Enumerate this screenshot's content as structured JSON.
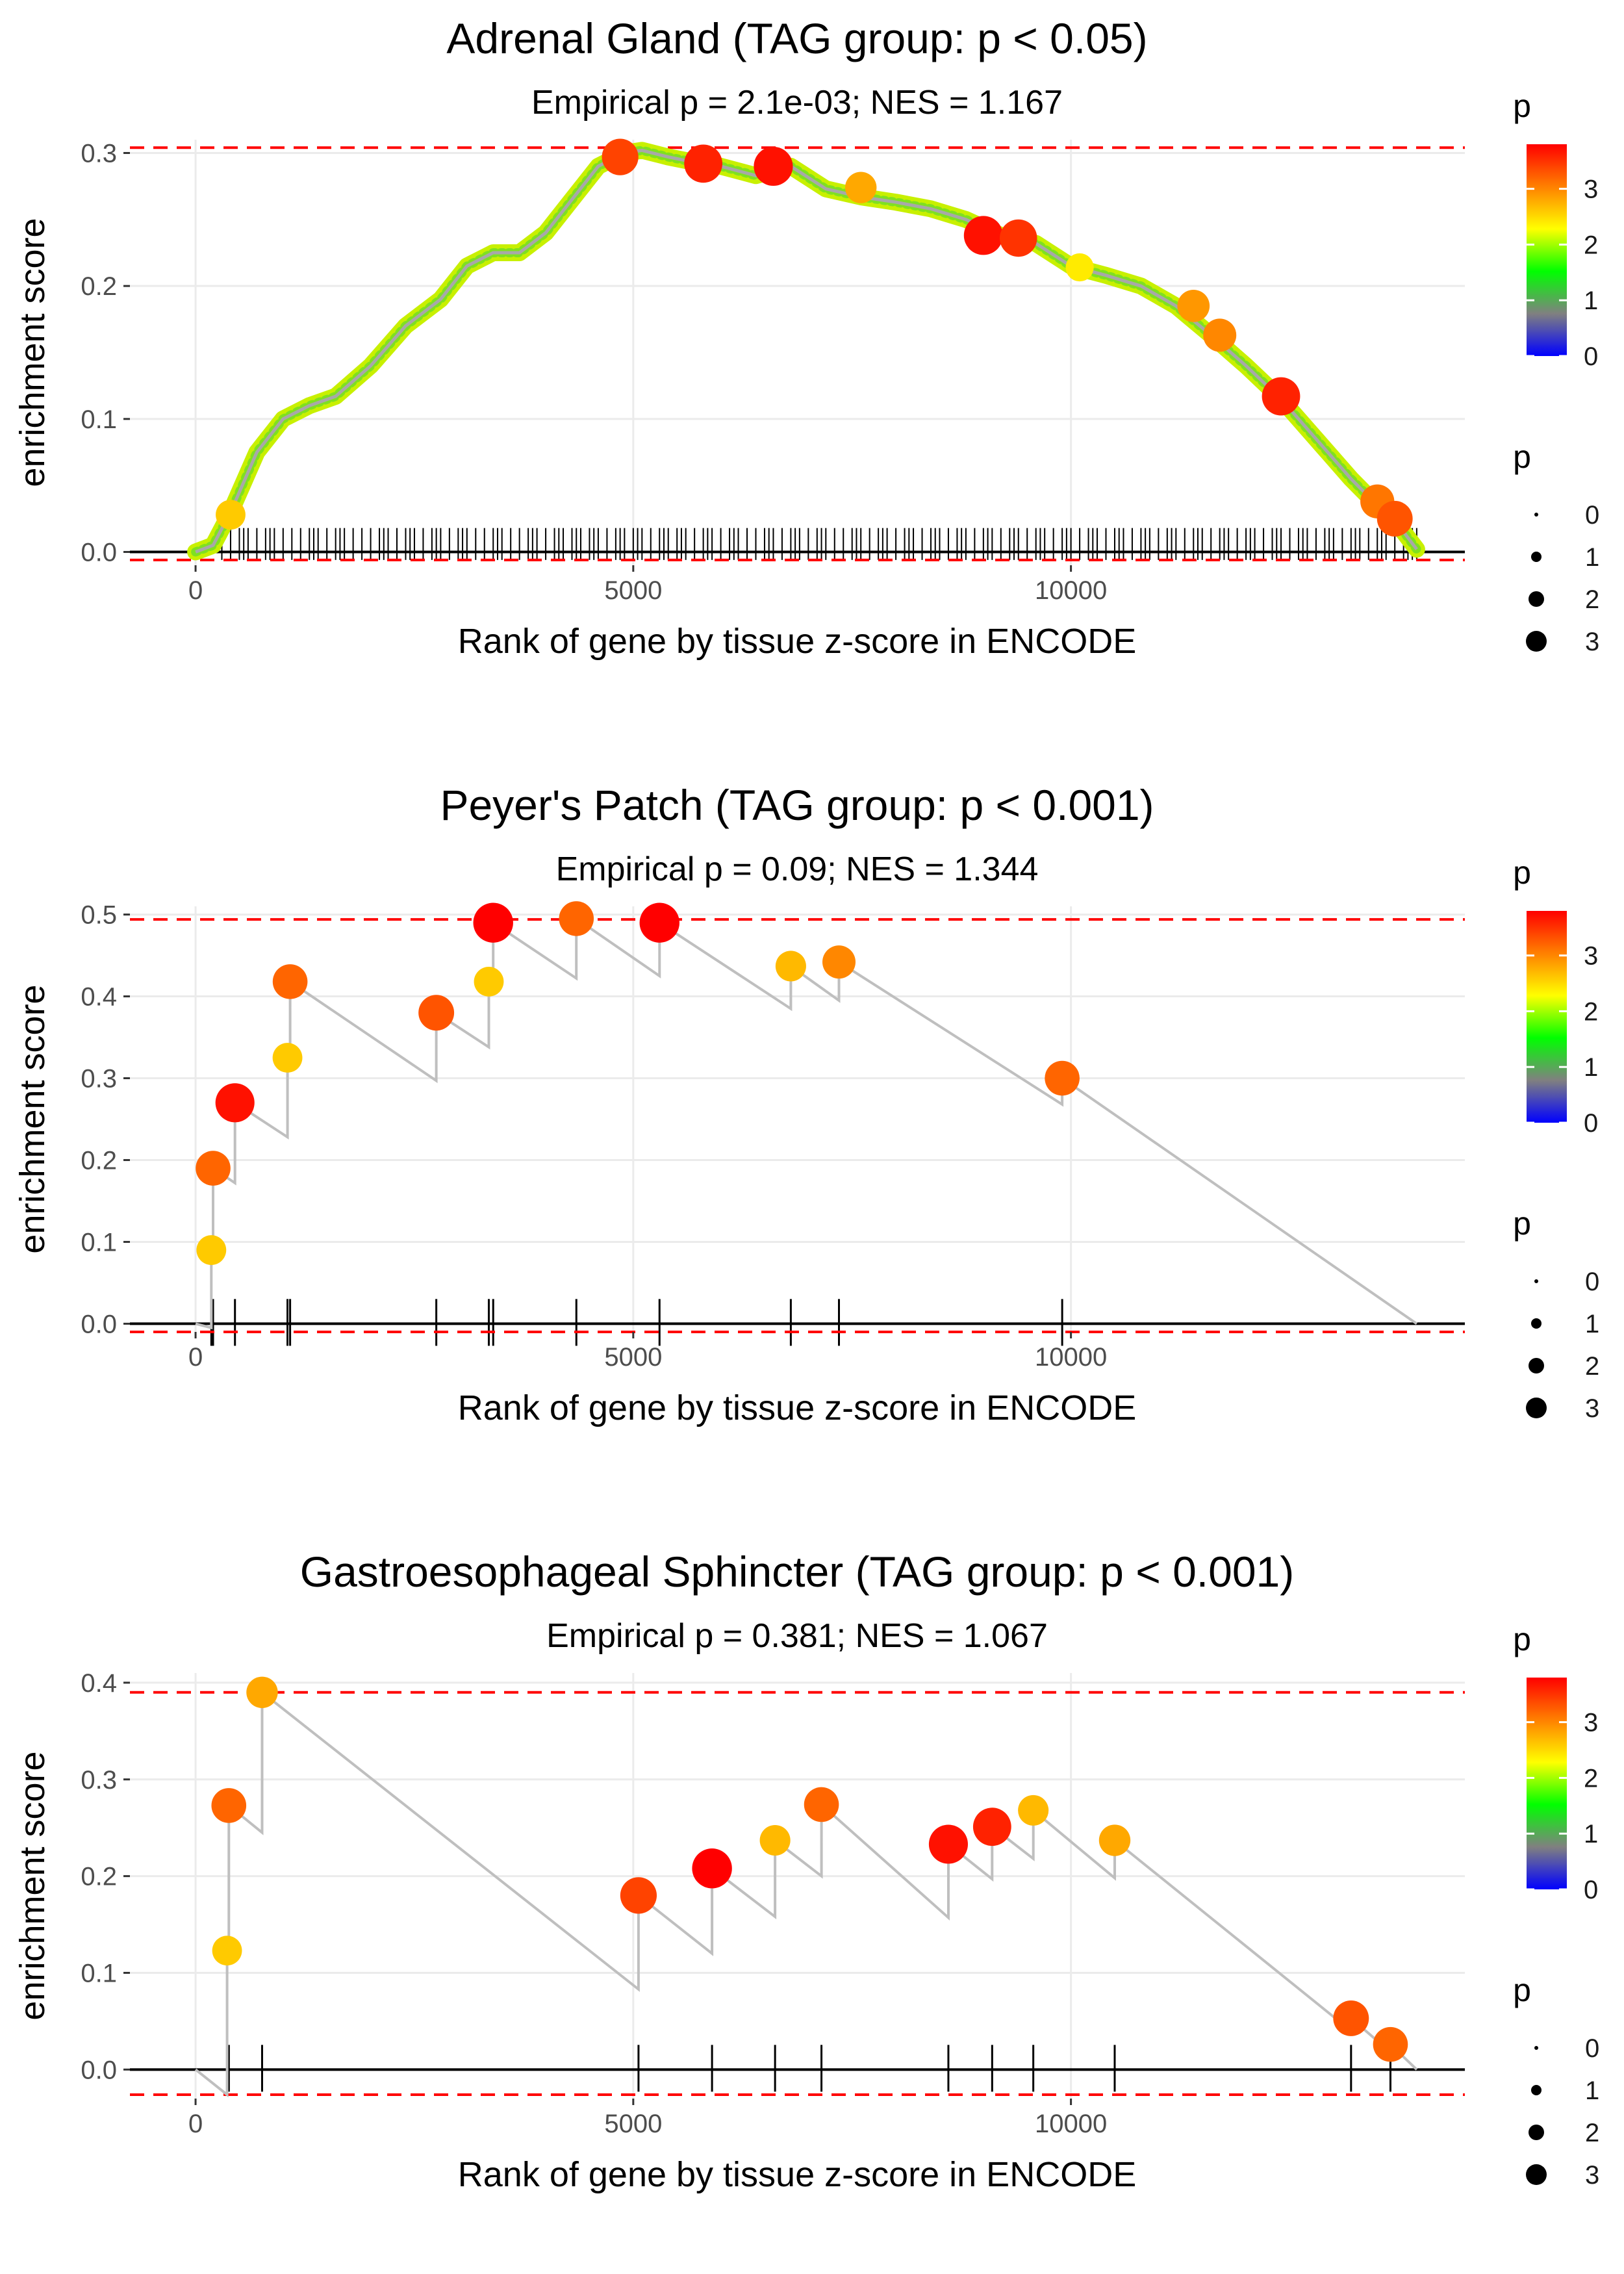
{
  "chart_data": [
    {
      "type": "line",
      "title": "Adrenal Gland (TAG group: p < 0.05)",
      "subtitle": "Empirical p = 2.1e-03; NES = 1.167",
      "xlabel": "Rank of gene by tissue z-score in ENCODE",
      "ylabel": "enrichment score",
      "xlim": [
        -750,
        14500
      ],
      "ylim": [
        -0.01,
        0.31
      ],
      "x_ticks": [
        0,
        5000,
        10000
      ],
      "x_tick_labels": [
        "0",
        "5000",
        "10000"
      ],
      "y_ticks": [
        0.0,
        0.1,
        0.2,
        0.3
      ],
      "y_tick_labels": [
        "0.0",
        "0.1",
        "0.2",
        "0.3"
      ],
      "ref_lines": [
        0.304,
        -0.006
      ],
      "curve": {
        "x": [
          0,
          200,
          400,
          700,
          1000,
          1300,
          1600,
          2000,
          2400,
          2800,
          3100,
          3400,
          3700,
          4000,
          4300,
          4600,
          4900,
          5100,
          5400,
          5700,
          6000,
          6400,
          6800,
          7200,
          7600,
          8000,
          8400,
          8800,
          9200,
          9600,
          10000,
          10400,
          10800,
          11200,
          11600,
          12000,
          12400,
          12800,
          13200,
          13500,
          13800,
          13950
        ],
        "y": [
          0.0,
          0.005,
          0.03,
          0.075,
          0.1,
          0.11,
          0.117,
          0.14,
          0.17,
          0.19,
          0.215,
          0.225,
          0.225,
          0.24,
          0.265,
          0.29,
          0.3,
          0.302,
          0.297,
          0.293,
          0.29,
          0.283,
          0.29,
          0.273,
          0.267,
          0.263,
          0.258,
          0.25,
          0.238,
          0.232,
          0.215,
          0.208,
          0.2,
          0.185,
          0.163,
          0.14,
          0.115,
          0.085,
          0.055,
          0.035,
          0.015,
          0.002
        ]
      },
      "hits": [
        300,
        400,
        500,
        550,
        600,
        700,
        800,
        850,
        900,
        1000,
        1100,
        1200,
        1300,
        1350,
        1400,
        1500,
        1600,
        1650,
        1700,
        1800,
        1900,
        2000,
        2100,
        2150,
        2200,
        2300,
        2400,
        2450,
        2500,
        2600,
        2700,
        2750,
        2800,
        2900,
        3000,
        3050,
        3100,
        3200,
        3300,
        3400,
        3450,
        3500,
        3600,
        3700,
        3800,
        3850,
        3900,
        4000,
        4100,
        4150,
        4200,
        4300,
        4350,
        4400,
        4500,
        4550,
        4600,
        4700,
        4800,
        4850,
        4900,
        5000,
        5050,
        5100,
        5200,
        5300,
        5350,
        5400,
        5500,
        5550,
        5600,
        5700,
        5800,
        5850,
        5900,
        6000,
        6100,
        6150,
        6200,
        6300,
        6400,
        6500,
        6550,
        6600,
        6700,
        6800,
        6850,
        6900,
        7000,
        7100,
        7150,
        7200,
        7300,
        7400,
        7500,
        7550,
        7600,
        7700,
        7800,
        7850,
        7900,
        8000,
        8100,
        8150,
        8200,
        8300,
        8400,
        8450,
        8500,
        8600,
        8700,
        8750,
        8800,
        8900,
        9000,
        9050,
        9100,
        9200,
        9300,
        9350,
        9400,
        9500,
        9600,
        9650,
        9700,
        9800,
        9900,
        9950,
        10000,
        10100,
        10200,
        10250,
        10300,
        10400,
        10500,
        10550,
        10600,
        10700,
        10800,
        10850,
        10900,
        11000,
        11100,
        11150,
        11200,
        11300,
        11400,
        11450,
        11500,
        11600,
        11700,
        11750,
        11800,
        11900,
        12000,
        12050,
        12100,
        12200,
        12300,
        12350,
        12400,
        12500,
        12600,
        12650,
        12700,
        12800,
        12900,
        12950,
        13000,
        13100,
        13200,
        13250,
        13300,
        13400,
        13500,
        13550,
        13600,
        13700,
        13800,
        13850,
        13900,
        13950
      ],
      "points": [
        {
          "x": 400,
          "y": 0.028,
          "p": 2.6
        },
        {
          "x": 4850,
          "y": 0.297,
          "p": 3.4
        },
        {
          "x": 5800,
          "y": 0.292,
          "p": 3.6
        },
        {
          "x": 6600,
          "y": 0.29,
          "p": 3.7
        },
        {
          "x": 7600,
          "y": 0.274,
          "p": 2.8
        },
        {
          "x": 9000,
          "y": 0.238,
          "p": 3.7
        },
        {
          "x": 9400,
          "y": 0.236,
          "p": 3.5
        },
        {
          "x": 10100,
          "y": 0.214,
          "p": 2.4
        },
        {
          "x": 11400,
          "y": 0.185,
          "p": 2.9
        },
        {
          "x": 11700,
          "y": 0.163,
          "p": 3.0
        },
        {
          "x": 12400,
          "y": 0.117,
          "p": 3.6
        },
        {
          "x": 13500,
          "y": 0.038,
          "p": 3.1
        },
        {
          "x": 13700,
          "y": 0.025,
          "p": 3.3
        }
      ]
    },
    {
      "type": "line",
      "title": "Peyer's Patch (TAG group: p < 0.001)",
      "subtitle": "Empirical p = 0.09; NES = 1.344",
      "xlabel": "Rank of gene by tissue z-score in ENCODE",
      "ylabel": "enrichment score",
      "xlim": [
        -750,
        14500
      ],
      "ylim": [
        -0.01,
        0.51
      ],
      "x_ticks": [
        0,
        5000,
        10000
      ],
      "x_tick_labels": [
        "0",
        "5000",
        "10000"
      ],
      "y_ticks": [
        0.0,
        0.1,
        0.2,
        0.3,
        0.4,
        0.5
      ],
      "y_tick_labels": [
        "0.0",
        "0.1",
        "0.2",
        "0.3",
        "0.4",
        "0.5"
      ],
      "ref_lines": [
        0.494,
        -0.01
      ],
      "curve": {
        "x": [
          0,
          180,
          180,
          200,
          200,
          450,
          450,
          1050,
          1050,
          1080,
          1080,
          2750,
          2750,
          3350,
          3350,
          3400,
          3400,
          4350,
          4350,
          5300,
          5300,
          6800,
          6800,
          7350,
          7350,
          9900,
          9900,
          13950
        ],
        "y": [
          0.0,
          -0.005,
          0.09,
          0.087,
          0.19,
          0.172,
          0.27,
          0.228,
          0.325,
          0.322,
          0.418,
          0.297,
          0.38,
          0.338,
          0.418,
          0.415,
          0.49,
          0.422,
          0.495,
          0.425,
          0.49,
          0.385,
          0.437,
          0.395,
          0.442,
          0.268,
          0.3,
          0.0
        ]
      },
      "hits": [
        180,
        200,
        450,
        1050,
        1080,
        2750,
        3350,
        3400,
        4350,
        5300,
        6800,
        7350,
        9900
      ],
      "points": [
        {
          "x": 180,
          "y": 0.09,
          "p": 2.6
        },
        {
          "x": 200,
          "y": 0.19,
          "p": 3.2
        },
        {
          "x": 450,
          "y": 0.27,
          "p": 3.7
        },
        {
          "x": 1050,
          "y": 0.325,
          "p": 2.6
        },
        {
          "x": 1080,
          "y": 0.418,
          "p": 3.2
        },
        {
          "x": 2750,
          "y": 0.38,
          "p": 3.3
        },
        {
          "x": 3350,
          "y": 0.418,
          "p": 2.6
        },
        {
          "x": 3400,
          "y": 0.49,
          "p": 3.8
        },
        {
          "x": 4350,
          "y": 0.495,
          "p": 3.2
        },
        {
          "x": 5300,
          "y": 0.49,
          "p": 3.8
        },
        {
          "x": 6800,
          "y": 0.437,
          "p": 2.7
        },
        {
          "x": 7350,
          "y": 0.442,
          "p": 3.0
        },
        {
          "x": 9900,
          "y": 0.3,
          "p": 3.2
        }
      ]
    },
    {
      "type": "line",
      "title": "Gastroesophageal Sphincter (TAG group: p < 0.001)",
      "subtitle": "Empirical p = 0.381; NES = 1.067",
      "xlabel": "Rank of gene by tissue z-score in ENCODE",
      "ylabel": "enrichment score",
      "xlim": [
        -750,
        14500
      ],
      "ylim": [
        -0.03,
        0.41
      ],
      "x_ticks": [
        0,
        5000,
        10000
      ],
      "x_tick_labels": [
        "0",
        "5000",
        "10000"
      ],
      "y_ticks": [
        0.0,
        0.1,
        0.2,
        0.3,
        0.4
      ],
      "y_tick_labels": [
        "0.0",
        "0.1",
        "0.2",
        "0.3",
        "0.4"
      ],
      "ref_lines": [
        0.39,
        -0.026
      ],
      "curve": {
        "x": [
          0,
          360,
          360,
          380,
          380,
          760,
          760,
          5060,
          5060,
          5900,
          5900,
          6620,
          6620,
          7150,
          7150,
          8600,
          8600,
          9100,
          9100,
          9570,
          9570,
          10500,
          10500,
          13200,
          13200,
          13650,
          13650,
          13950
        ],
        "y": [
          0.0,
          -0.026,
          0.123,
          0.12,
          0.273,
          0.245,
          0.39,
          0.083,
          0.18,
          0.12,
          0.208,
          0.158,
          0.237,
          0.2,
          0.274,
          0.157,
          0.233,
          0.197,
          0.251,
          0.218,
          0.268,
          0.198,
          0.237,
          0.04,
          0.053,
          0.018,
          0.026,
          0.0
        ]
      },
      "hits": [
        360,
        380,
        760,
        5060,
        5900,
        6620,
        7150,
        8600,
        9100,
        9570,
        10500,
        13200,
        13650
      ],
      "points": [
        {
          "x": 360,
          "y": 0.123,
          "p": 2.6
        },
        {
          "x": 380,
          "y": 0.273,
          "p": 3.2
        },
        {
          "x": 760,
          "y": 0.39,
          "p": 2.8
        },
        {
          "x": 5060,
          "y": 0.18,
          "p": 3.4
        },
        {
          "x": 5900,
          "y": 0.208,
          "p": 3.8
        },
        {
          "x": 6620,
          "y": 0.237,
          "p": 2.7
        },
        {
          "x": 7150,
          "y": 0.274,
          "p": 3.2
        },
        {
          "x": 8600,
          "y": 0.233,
          "p": 3.7
        },
        {
          "x": 9100,
          "y": 0.251,
          "p": 3.6
        },
        {
          "x": 9570,
          "y": 0.268,
          "p": 2.7
        },
        {
          "x": 10500,
          "y": 0.237,
          "p": 2.8
        },
        {
          "x": 13200,
          "y": 0.053,
          "p": 3.3
        },
        {
          "x": 13650,
          "y": 0.026,
          "p": 3.2
        }
      ]
    }
  ],
  "legend": {
    "color_title": "p",
    "color_ticks": [
      0,
      1,
      2,
      3
    ],
    "color_tick_labels": [
      "0",
      "1",
      "2",
      "3"
    ],
    "color_max": 3.8,
    "size_title": "p",
    "size_labels": [
      "0",
      "1",
      "2",
      "3"
    ],
    "gradient_colors": [
      "#0000ff",
      "#808080",
      "#00ff00",
      "#ffff00",
      "#ff8000",
      "#ff0000"
    ]
  },
  "colors": {
    "ref_line": "#ff0000",
    "curve": "#bfbfbf",
    "grid": "#ebebeb",
    "axis_zero": "#000000",
    "hit_tick": "#000000"
  }
}
